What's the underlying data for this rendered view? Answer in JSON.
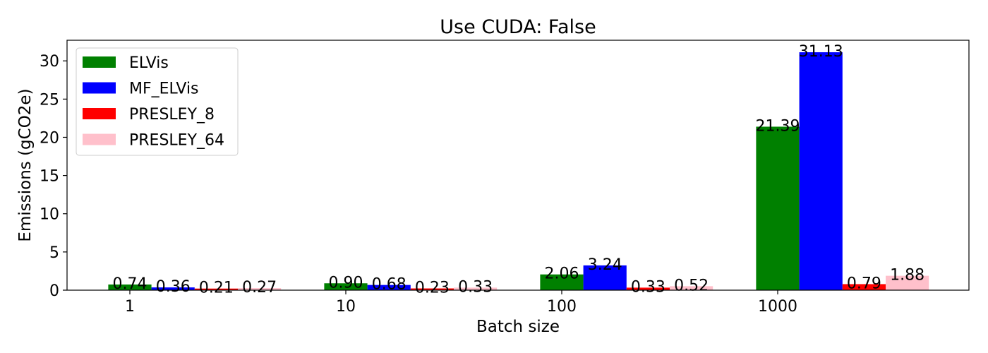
{
  "chart_data": {
    "type": "bar",
    "title": "Use CUDA: False",
    "xlabel": "Batch size",
    "ylabel": "Emissions (gCO2e)",
    "categories": [
      "1",
      "10",
      "100",
      "1000"
    ],
    "ylim": [
      0,
      32.7
    ],
    "yticks": [
      0,
      5,
      10,
      15,
      20,
      25,
      30
    ],
    "grid": false,
    "legend_position": "top-left",
    "series": [
      {
        "name": "ELVis",
        "color": "#008000",
        "values": [
          0.74,
          0.9,
          2.06,
          21.39
        ],
        "labels": [
          "0.74",
          "0.90",
          "2.06",
          "21.39"
        ]
      },
      {
        "name": "MF_ELVis",
        "color": "#0000ff",
        "values": [
          0.36,
          0.68,
          3.24,
          31.13
        ],
        "labels": [
          "0.36",
          "0.68",
          "3.24",
          "31.13"
        ]
      },
      {
        "name": "PRESLEY_8",
        "color": "#ff0000",
        "values": [
          0.21,
          0.23,
          0.33,
          0.79
        ],
        "labels": [
          "0.21",
          "0.23",
          "0.33",
          "0.79"
        ]
      },
      {
        "name": "PRESLEY_64",
        "color": "#ffc0cb",
        "values": [
          0.27,
          0.33,
          0.52,
          1.88
        ],
        "labels": [
          "0.27",
          "0.33",
          "0.52",
          "1.88"
        ]
      }
    ]
  }
}
